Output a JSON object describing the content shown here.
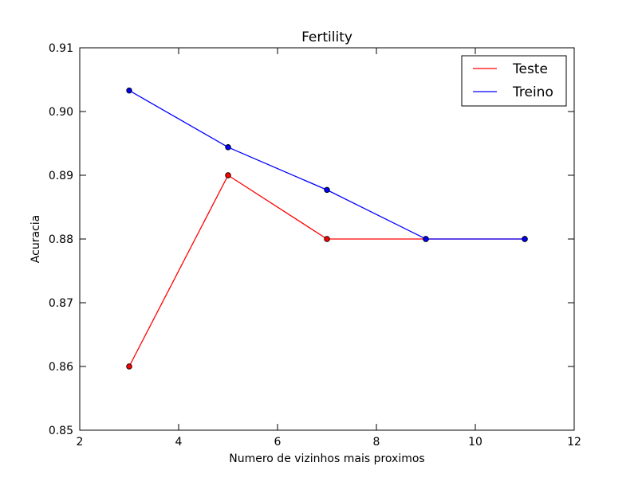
{
  "chart_data": {
    "type": "line",
    "title": "Fertility",
    "xlabel": "Numero de vizinhos mais proximos",
    "ylabel": "Acuracia",
    "xlim": [
      2,
      12
    ],
    "ylim": [
      0.85,
      0.91
    ],
    "xticks": [
      2,
      4,
      6,
      8,
      10,
      12
    ],
    "xtick_labels": [
      "2",
      "4",
      "6",
      "8",
      "10",
      "12"
    ],
    "yticks": [
      0.85,
      0.86,
      0.87,
      0.88,
      0.89,
      0.9,
      0.91
    ],
    "ytick_labels": [
      "0.85",
      "0.86",
      "0.87",
      "0.88",
      "0.89",
      "0.90",
      "0.91"
    ],
    "grid": false,
    "legend_position": "top-right",
    "x": [
      3,
      5,
      7,
      9,
      11
    ],
    "series": [
      {
        "name": "Teste",
        "color": "#ff0000",
        "values": [
          0.86,
          0.89,
          0.88,
          0.88,
          0.88
        ]
      },
      {
        "name": "Treino",
        "color": "#0000ff",
        "values": [
          0.9033,
          0.8944,
          0.8877,
          0.88,
          0.88
        ]
      }
    ]
  }
}
